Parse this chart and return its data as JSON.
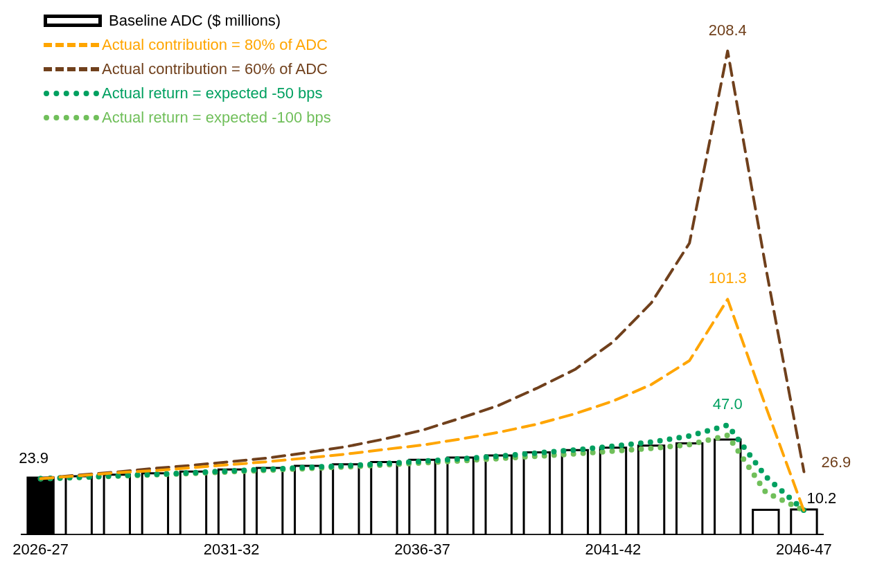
{
  "chart_data": {
    "type": "bar",
    "categories": [
      "2026-27",
      null,
      null,
      null,
      null,
      "2031-32",
      null,
      null,
      null,
      null,
      "2036-37",
      null,
      null,
      null,
      null,
      "2041-42",
      null,
      null,
      null,
      null,
      "2046-47"
    ],
    "ylim": [
      0,
      225
    ],
    "tick_labels": "x",
    "grid": false,
    "legend": "top left",
    "marker": "none",
    "series": [
      {
        "name": "Baseline ADC ($ millions)",
        "color": "#000000",
        "colors": [
          "#000000",
          "#ffffff",
          "#ffffff",
          "#ffffff",
          "#ffffff",
          "#ffffff",
          "#ffffff",
          "#ffffff",
          "#ffffff",
          "#ffffff",
          "#ffffff",
          "#ffffff",
          "#ffffff",
          "#ffffff",
          "#ffffff",
          "#ffffff",
          "#ffffff",
          "#ffffff",
          "#ffffff",
          "#ffffff",
          "#ffffff"
        ],
        "values": [
          23.9,
          24.5,
          25.2,
          25.8,
          26.5,
          27.4,
          28.1,
          29.0,
          29.7,
          30.6,
          31.6,
          32.6,
          33.5,
          34.8,
          35.8,
          36.8,
          37.7,
          38.7,
          40.3,
          10.0,
          10.2
        ],
        "value_labels": [
          "23.9",
          null,
          null,
          null,
          null,
          null,
          null,
          null,
          null,
          null,
          null,
          null,
          null,
          null,
          null,
          null,
          null,
          null,
          null,
          null,
          "10.2"
        ]
      },
      {
        "name": "Actual contribution = 80% of ADC",
        "type": "line",
        "line_style": "dashed",
        "color": "#ffa500",
        "values": [
          23.9,
          25.2,
          26.5,
          27.4,
          28.7,
          30.0,
          31.3,
          32.9,
          34.5,
          36.5,
          38.4,
          41.0,
          43.9,
          47.4,
          51.9,
          57.4,
          64.5,
          74.8,
          101.3,
          55,
          10.0
        ],
        "value_labels": [
          null,
          null,
          null,
          null,
          null,
          null,
          null,
          null,
          null,
          null,
          null,
          null,
          null,
          null,
          null,
          null,
          null,
          null,
          "101.3",
          null,
          null
        ]
      },
      {
        "name": "Actual contribution = 60% of ADC",
        "type": "line",
        "line_style": "dashed",
        "color": "#70401c",
        "values": [
          23.9,
          25.5,
          26.8,
          28.4,
          29.7,
          31.3,
          32.9,
          35.2,
          37.7,
          41.0,
          44.8,
          50.0,
          55.5,
          62.9,
          71.0,
          82.9,
          99.7,
          125.5,
          208.4,
          115,
          26.9
        ],
        "value_labels": [
          null,
          null,
          null,
          null,
          null,
          null,
          null,
          null,
          null,
          null,
          null,
          null,
          null,
          null,
          null,
          null,
          null,
          null,
          "208.4",
          null,
          "26.9"
        ]
      },
      {
        "name": "Actual return = expected -50 bps",
        "type": "line",
        "line_style": "dotted",
        "color": "#00a060",
        "values": [
          23.9,
          24.5,
          25.2,
          25.8,
          26.5,
          27.3,
          28.0,
          28.8,
          29.5,
          30.4,
          31.4,
          32.5,
          33.6,
          35.0,
          36.3,
          37.9,
          39.7,
          42.3,
          47.0,
          24.8,
          10.2
        ],
        "value_labels": [
          null,
          null,
          null,
          null,
          null,
          null,
          null,
          null,
          null,
          null,
          null,
          null,
          null,
          null,
          null,
          null,
          null,
          null,
          "47.0",
          null,
          null
        ]
      },
      {
        "name": "Actual return = expected -100 bps",
        "type": "line",
        "line_style": "dotted",
        "color": "#70bf5a",
        "values": [
          23.9,
          24.4,
          25.0,
          25.6,
          26.2,
          26.9,
          27.6,
          28.3,
          29.0,
          29.8,
          30.7,
          31.6,
          32.6,
          33.6,
          34.6,
          35.8,
          37.0,
          38.6,
          42.6,
          18.0,
          10.2
        ]
      }
    ]
  }
}
